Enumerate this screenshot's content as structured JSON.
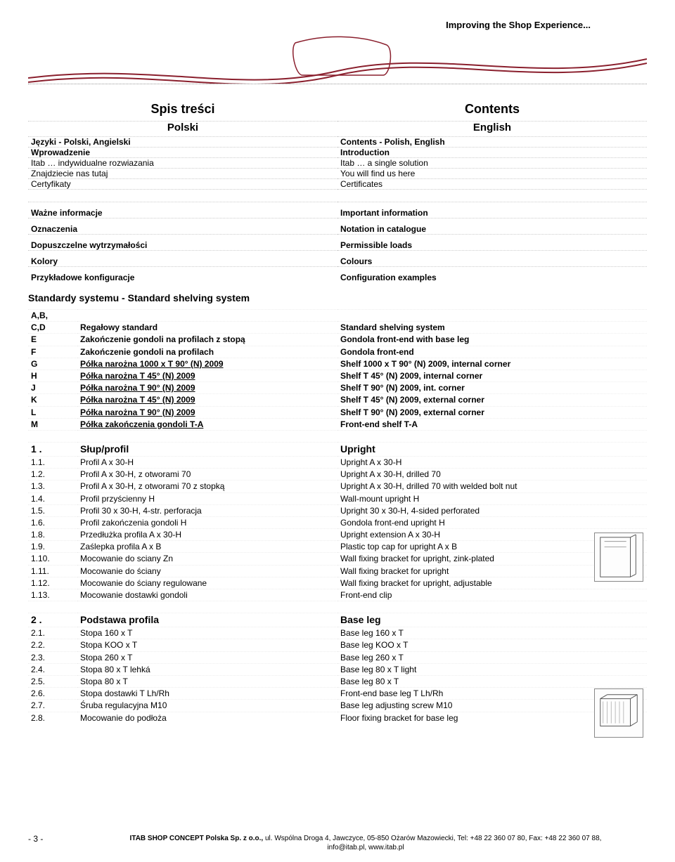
{
  "header": {
    "slogan": "Improving the Shop Experience...",
    "wave_color": "#8a1f2d"
  },
  "titles": {
    "pl": "Spis treści",
    "en": "Contents"
  },
  "lang": {
    "pl": "Polski",
    "en": "English"
  },
  "intro_rows": [
    {
      "pl": "Języki  - Polski, Angielski",
      "en": "Contents  -  Polish, English",
      "bold_left": true,
      "bold_right": true
    },
    {
      "pl": "Wprowadzenie",
      "en": "Introduction",
      "bold_left": true,
      "bold_right": true
    },
    {
      "pl": "Itab … indywidualne rozwiazania",
      "en": "Itab … a single solution"
    },
    {
      "pl": "Znajdziecie nas tutaj",
      "en": "You will find us here"
    },
    {
      "pl": "Certyfikaty",
      "en": "Certificates"
    }
  ],
  "info_rows": [
    {
      "pl": "Ważne informacje",
      "en": "Important information",
      "bold": true
    },
    {
      "pl": "Oznaczenia",
      "en": "Notation in catalogue",
      "bold": true
    },
    {
      "pl": "Dopuszczelne wytrzymałości",
      "en": "Permissible loads",
      "bold": true
    },
    {
      "pl": "Kolory",
      "en": "Colours",
      "bold": true
    },
    {
      "pl": "Przykładowe konfiguracje",
      "en": "Configuration examples",
      "bold": true
    }
  ],
  "std_heading": "Standardy systemu   -   Standard shelving system",
  "abcd_rows": [
    {
      "code": "A,B,",
      "pl": "",
      "en": ""
    },
    {
      "code": "C,D",
      "pl": "Regałowy standard",
      "en": "Standard shelving system",
      "bold": true
    },
    {
      "code": "E",
      "pl": "Zakończenie gondoli na profilach z stopą",
      "en": "Gondola front-end with base leg",
      "bold": true
    },
    {
      "code": "F",
      "pl": "Zakończenie gondoli na profilach",
      "en": "Gondola front-end",
      "bold": true
    },
    {
      "code": "G",
      "pl": "Półka narożna 1000 x T 90° (N) 2009",
      "en": "Shelf 1000 x T 90° (N) 2009, internal corner",
      "bold": true,
      "underline": true
    },
    {
      "code": "H",
      "pl": "Półka narożna  T 45° (N) 2009",
      "en": "Shelf  T 45° (N) 2009, internal corner",
      "bold": true,
      "underline": true
    },
    {
      "code": "J",
      "pl": "Półka narożna  T 90° (N) 2009",
      "en": "Shelf  T 90° (N) 2009, int. corner",
      "bold": true,
      "underline": true
    },
    {
      "code": "K",
      "pl": "Półka narożna  T 45° (N) 2009",
      "en": "Shelf  T 45° (N) 2009, external corner",
      "bold": true,
      "underline": true
    },
    {
      "code": "L",
      "pl": "Półka narożna  T 90° (N) 2009",
      "en": "Shelf  T 90° (N) 2009, external corner",
      "bold": true,
      "underline": true
    },
    {
      "code": "M",
      "pl": "Półka zakończenia gondoli  T-A",
      "en": "Front-end shelf  T-A",
      "bold": true,
      "underline": true
    }
  ],
  "sec1": {
    "head": {
      "code": "1 .",
      "pl": "Słup/profil",
      "en": "Upright"
    },
    "rows": [
      {
        "code": "1.1.",
        "pl": "Profil A x 30-H",
        "en": "Upright A x 30-H"
      },
      {
        "code": "1.2.",
        "pl": "Profil A x 30-H, z otworami 70",
        "en": "Upright A x 30-H, drilled 70"
      },
      {
        "code": "1.3.",
        "pl": "Profil A x 30-H, z otworami 70 z stopką",
        "en": "Upright A x 30-H, drilled 70 with welded bolt nut"
      },
      {
        "code": "1.4.",
        "pl": "Profil przyścienny H",
        "en": "Wall-mount upright H"
      },
      {
        "code": "1.5.",
        "pl": "Profil 30 x 30-H, 4-str. perforacja",
        "en": "Upright 30 x 30-H, 4-sided perforated"
      },
      {
        "code": "1.6.",
        "pl": "Profil zakończenia gondoli H",
        "en": "Gondola front-end upright H"
      },
      {
        "code": "1.8.",
        "pl": "Przedłużka profila A x 30-H",
        "en": "Upright extension A x 30-H"
      },
      {
        "code": "1.9.",
        "pl": "Zaślepka profila A x B",
        "en": "Plastic top cap for upright A x B"
      },
      {
        "code": "1.10.",
        "pl": "Mocowanie do sciany Zn",
        "en": "Wall fixing bracket for upright, zink-plated"
      },
      {
        "code": "1.11.",
        "pl": "Mocowanie do ściany",
        "en": "Wall fixing bracket for upright"
      },
      {
        "code": "1.12.",
        "pl": "Mocowanie do ściany regulowane",
        "en": "Wall fixing bracket for upright, adjustable"
      },
      {
        "code": "1.13.",
        "pl": "Mocowanie dostawki gondoli",
        "en": "Front-end clip"
      }
    ]
  },
  "sec2": {
    "head": {
      "code": "2 .",
      "pl": "Podstawa profila",
      "en": "Base leg"
    },
    "rows": [
      {
        "code": "2.1.",
        "pl": "Stopa 160 x T",
        "en": "Base leg 160 x T"
      },
      {
        "code": "2.2.",
        "pl": "Stopa KOO x T",
        "en": "Base leg KOO x T"
      },
      {
        "code": "2.3.",
        "pl": "Stopa 260 x T",
        "en": "Base leg 260 x T"
      },
      {
        "code": "2.4.",
        "pl": "Stopa 80 x T lehká",
        "en": "Base leg 80 x T light"
      },
      {
        "code": "2.5.",
        "pl": "Stopa 80 x T",
        "en": "Base leg 80 x T"
      },
      {
        "code": "2.6.",
        "pl": "Stopa dostawki T Lh/Rh",
        "en": "Front-end base leg T Lh/Rh"
      },
      {
        "code": "2.7.",
        "pl": "Śruba regulacyjna M10",
        "en": "Base leg adjusting screw M10"
      },
      {
        "code": "2.8.",
        "pl": "Mocowanie do podłoża",
        "en": "Floor fixing bracket for base leg"
      }
    ]
  },
  "footer": {
    "page": "- 3 -",
    "company": "ITAB SHOP CONCEPT Polska Sp. z o.o.,",
    "addr_line1": " ul. Wspólna Droga 4, Jawczyce, 05-850 Ożarów Mazowiecki, Tel: +48 22 360 07 80, Fax: +48 22 360 07 88,",
    "addr_line2": "info@itab.pl, www.itab.pl"
  }
}
